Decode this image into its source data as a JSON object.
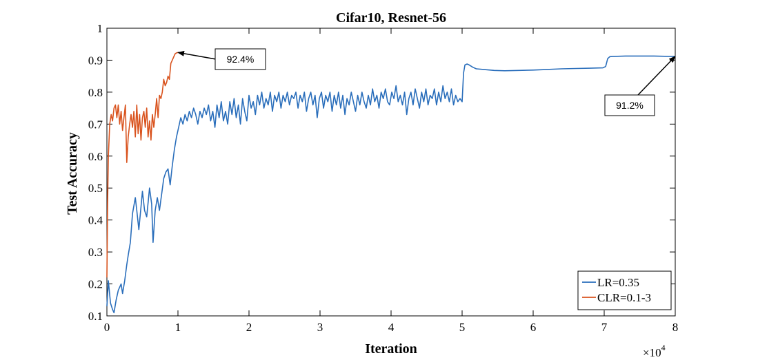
{
  "chart_data": {
    "type": "line",
    "title": "Cifar10, Resnet-56",
    "xlabel": "Iteration",
    "ylabel": "Test Accuracy",
    "x_scale_label": "×10^4",
    "xlim": [
      0,
      8
    ],
    "ylim": [
      0.1,
      1
    ],
    "x_ticks": [
      "0",
      "1",
      "2",
      "3",
      "4",
      "5",
      "6",
      "7",
      "8"
    ],
    "y_ticks": [
      "0.1",
      "0.2",
      "0.3",
      "0.4",
      "0.5",
      "0.6",
      "0.7",
      "0.8",
      "0.9",
      "1"
    ],
    "grid": false,
    "legend_position": "bottom-right",
    "series": [
      {
        "name": "LR=0.35",
        "color": "#2a6ebb",
        "points": [
          [
            0,
            0.13
          ],
          [
            0.02,
            0.21
          ],
          [
            0.05,
            0.14
          ],
          [
            0.08,
            0.12
          ],
          [
            0.1,
            0.11
          ],
          [
            0.13,
            0.15
          ],
          [
            0.16,
            0.18
          ],
          [
            0.2,
            0.2
          ],
          [
            0.22,
            0.17
          ],
          [
            0.25,
            0.21
          ],
          [
            0.28,
            0.26
          ],
          [
            0.3,
            0.29
          ],
          [
            0.33,
            0.33
          ],
          [
            0.36,
            0.42
          ],
          [
            0.4,
            0.47
          ],
          [
            0.42,
            0.43
          ],
          [
            0.45,
            0.37
          ],
          [
            0.48,
            0.44
          ],
          [
            0.5,
            0.49
          ],
          [
            0.53,
            0.43
          ],
          [
            0.56,
            0.41
          ],
          [
            0.6,
            0.5
          ],
          [
            0.63,
            0.45
          ],
          [
            0.65,
            0.33
          ],
          [
            0.68,
            0.43
          ],
          [
            0.71,
            0.47
          ],
          [
            0.74,
            0.43
          ],
          [
            0.77,
            0.48
          ],
          [
            0.8,
            0.53
          ],
          [
            0.83,
            0.55
          ],
          [
            0.86,
            0.56
          ],
          [
            0.89,
            0.51
          ],
          [
            0.92,
            0.57
          ],
          [
            0.95,
            0.62
          ],
          [
            0.98,
            0.66
          ],
          [
            1.01,
            0.69
          ],
          [
            1.04,
            0.72
          ],
          [
            1.07,
            0.7
          ],
          [
            1.1,
            0.73
          ],
          [
            1.13,
            0.71
          ],
          [
            1.16,
            0.74
          ],
          [
            1.19,
            0.72
          ],
          [
            1.22,
            0.75
          ],
          [
            1.25,
            0.73
          ],
          [
            1.28,
            0.7
          ],
          [
            1.31,
            0.74
          ],
          [
            1.34,
            0.72
          ],
          [
            1.37,
            0.75
          ],
          [
            1.4,
            0.73
          ],
          [
            1.43,
            0.76
          ],
          [
            1.46,
            0.71
          ],
          [
            1.49,
            0.74
          ],
          [
            1.52,
            0.69
          ],
          [
            1.55,
            0.76
          ],
          [
            1.58,
            0.72
          ],
          [
            1.61,
            0.77
          ],
          [
            1.64,
            0.71
          ],
          [
            1.67,
            0.74
          ],
          [
            1.7,
            0.7
          ],
          [
            1.73,
            0.77
          ],
          [
            1.76,
            0.73
          ],
          [
            1.79,
            0.78
          ],
          [
            1.82,
            0.72
          ],
          [
            1.85,
            0.76
          ],
          [
            1.88,
            0.7
          ],
          [
            1.91,
            0.78
          ],
          [
            1.94,
            0.74
          ],
          [
            1.97,
            0.71
          ],
          [
            2.0,
            0.79
          ],
          [
            2.03,
            0.75
          ],
          [
            2.06,
            0.77
          ],
          [
            2.09,
            0.73
          ],
          [
            2.12,
            0.79
          ],
          [
            2.15,
            0.76
          ],
          [
            2.18,
            0.8
          ],
          [
            2.21,
            0.75
          ],
          [
            2.24,
            0.78
          ],
          [
            2.27,
            0.76
          ],
          [
            2.3,
            0.8
          ],
          [
            2.33,
            0.74
          ],
          [
            2.36,
            0.79
          ],
          [
            2.39,
            0.77
          ],
          [
            2.42,
            0.8
          ],
          [
            2.45,
            0.75
          ],
          [
            2.48,
            0.79
          ],
          [
            2.51,
            0.77
          ],
          [
            2.54,
            0.8
          ],
          [
            2.57,
            0.76
          ],
          [
            2.6,
            0.79
          ],
          [
            2.63,
            0.78
          ],
          [
            2.66,
            0.8
          ],
          [
            2.69,
            0.75
          ],
          [
            2.72,
            0.79
          ],
          [
            2.75,
            0.77
          ],
          [
            2.78,
            0.8
          ],
          [
            2.81,
            0.74
          ],
          [
            2.84,
            0.78
          ],
          [
            2.87,
            0.8
          ],
          [
            2.9,
            0.76
          ],
          [
            2.93,
            0.79
          ],
          [
            2.96,
            0.72
          ],
          [
            2.99,
            0.78
          ],
          [
            3.02,
            0.8
          ],
          [
            3.05,
            0.75
          ],
          [
            3.08,
            0.79
          ],
          [
            3.11,
            0.77
          ],
          [
            3.14,
            0.8
          ],
          [
            3.17,
            0.74
          ],
          [
            3.2,
            0.79
          ],
          [
            3.23,
            0.76
          ],
          [
            3.26,
            0.8
          ],
          [
            3.29,
            0.75
          ],
          [
            3.32,
            0.79
          ],
          [
            3.35,
            0.73
          ],
          [
            3.38,
            0.78
          ],
          [
            3.41,
            0.76
          ],
          [
            3.44,
            0.8
          ],
          [
            3.47,
            0.77
          ],
          [
            3.5,
            0.74
          ],
          [
            3.53,
            0.79
          ],
          [
            3.56,
            0.76
          ],
          [
            3.59,
            0.8
          ],
          [
            3.62,
            0.77
          ],
          [
            3.65,
            0.75
          ],
          [
            3.68,
            0.79
          ],
          [
            3.71,
            0.76
          ],
          [
            3.74,
            0.81
          ],
          [
            3.77,
            0.77
          ],
          [
            3.8,
            0.79
          ],
          [
            3.83,
            0.75
          ],
          [
            3.86,
            0.8
          ],
          [
            3.89,
            0.78
          ],
          [
            3.92,
            0.81
          ],
          [
            3.95,
            0.77
          ],
          [
            3.98,
            0.76
          ],
          [
            4.01,
            0.8
          ],
          [
            4.04,
            0.78
          ],
          [
            4.07,
            0.82
          ],
          [
            4.1,
            0.77
          ],
          [
            4.13,
            0.79
          ],
          [
            4.16,
            0.76
          ],
          [
            4.19,
            0.8
          ],
          [
            4.22,
            0.73
          ],
          [
            4.25,
            0.78
          ],
          [
            4.28,
            0.8
          ],
          [
            4.31,
            0.76
          ],
          [
            4.34,
            0.81
          ],
          [
            4.37,
            0.78
          ],
          [
            4.4,
            0.75
          ],
          [
            4.43,
            0.8
          ],
          [
            4.46,
            0.77
          ],
          [
            4.49,
            0.81
          ],
          [
            4.52,
            0.76
          ],
          [
            4.55,
            0.79
          ],
          [
            4.58,
            0.78
          ],
          [
            4.61,
            0.81
          ],
          [
            4.64,
            0.76
          ],
          [
            4.67,
            0.8
          ],
          [
            4.7,
            0.77
          ],
          [
            4.73,
            0.82
          ],
          [
            4.76,
            0.78
          ],
          [
            4.79,
            0.8
          ],
          [
            4.82,
            0.77
          ],
          [
            4.85,
            0.81
          ],
          [
            4.88,
            0.76
          ],
          [
            4.91,
            0.79
          ],
          [
            4.94,
            0.77
          ],
          [
            4.97,
            0.78
          ],
          [
            5.0,
            0.77
          ],
          [
            5.02,
            0.86
          ],
          [
            5.04,
            0.885
          ],
          [
            5.07,
            0.888
          ],
          [
            5.1,
            0.885
          ],
          [
            5.15,
            0.878
          ],
          [
            5.2,
            0.873
          ],
          [
            5.3,
            0.871
          ],
          [
            5.45,
            0.868
          ],
          [
            5.6,
            0.867
          ],
          [
            5.8,
            0.868
          ],
          [
            6.0,
            0.869
          ],
          [
            6.2,
            0.871
          ],
          [
            6.4,
            0.873
          ],
          [
            6.6,
            0.874
          ],
          [
            6.8,
            0.875
          ],
          [
            6.98,
            0.876
          ],
          [
            7.02,
            0.88
          ],
          [
            7.05,
            0.905
          ],
          [
            7.08,
            0.911
          ],
          [
            7.15,
            0.912
          ],
          [
            7.3,
            0.913
          ],
          [
            7.5,
            0.913
          ],
          [
            7.7,
            0.913
          ],
          [
            7.9,
            0.912
          ],
          [
            8.0,
            0.912
          ]
        ]
      },
      {
        "name": "CLR=0.1-3",
        "color": "#d9531e",
        "points": [
          [
            0,
            0.22
          ],
          [
            0.01,
            0.45
          ],
          [
            0.02,
            0.6
          ],
          [
            0.04,
            0.7
          ],
          [
            0.06,
            0.73
          ],
          [
            0.08,
            0.71
          ],
          [
            0.1,
            0.75
          ],
          [
            0.12,
            0.76
          ],
          [
            0.14,
            0.72
          ],
          [
            0.16,
            0.76
          ],
          [
            0.18,
            0.7
          ],
          [
            0.2,
            0.74
          ],
          [
            0.22,
            0.68
          ],
          [
            0.24,
            0.72
          ],
          [
            0.26,
            0.76
          ],
          [
            0.28,
            0.58
          ],
          [
            0.3,
            0.66
          ],
          [
            0.32,
            0.7
          ],
          [
            0.34,
            0.73
          ],
          [
            0.36,
            0.69
          ],
          [
            0.38,
            0.74
          ],
          [
            0.4,
            0.66
          ],
          [
            0.42,
            0.76
          ],
          [
            0.44,
            0.67
          ],
          [
            0.46,
            0.73
          ],
          [
            0.48,
            0.65
          ],
          [
            0.5,
            0.72
          ],
          [
            0.52,
            0.74
          ],
          [
            0.54,
            0.69
          ],
          [
            0.56,
            0.75
          ],
          [
            0.58,
            0.66
          ],
          [
            0.6,
            0.71
          ],
          [
            0.62,
            0.65
          ],
          [
            0.64,
            0.73
          ],
          [
            0.66,
            0.69
          ],
          [
            0.68,
            0.73
          ],
          [
            0.7,
            0.78
          ],
          [
            0.72,
            0.72
          ],
          [
            0.74,
            0.79
          ],
          [
            0.76,
            0.78
          ],
          [
            0.78,
            0.8
          ],
          [
            0.8,
            0.84
          ],
          [
            0.82,
            0.82
          ],
          [
            0.84,
            0.83
          ],
          [
            0.86,
            0.85
          ],
          [
            0.88,
            0.84
          ],
          [
            0.9,
            0.89
          ],
          [
            0.92,
            0.9
          ],
          [
            0.94,
            0.91
          ],
          [
            0.96,
            0.92
          ],
          [
            0.98,
            0.923
          ],
          [
            1.0,
            0.924
          ]
        ]
      }
    ],
    "annotations": [
      {
        "text": "92.4%",
        "target_x": 1.0,
        "target_y": 0.924
      },
      {
        "text": "91.2%",
        "target_x": 8.0,
        "target_y": 0.912
      }
    ]
  }
}
